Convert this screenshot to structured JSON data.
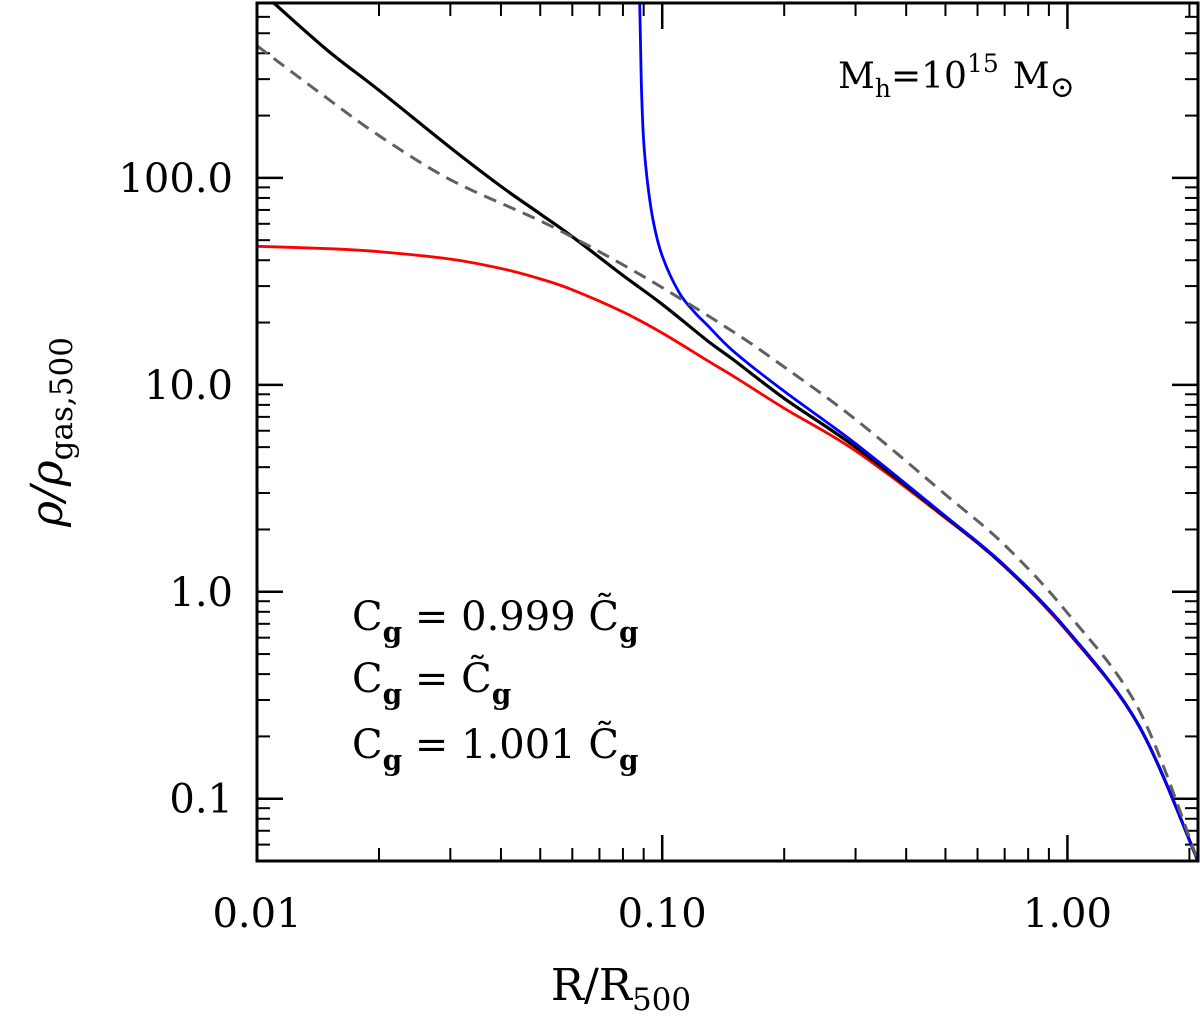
{
  "chart_data": {
    "type": "line",
    "xscale": "log",
    "yscale": "log",
    "xlim": [
      0.01,
      2.1
    ],
    "ylim": [
      0.05,
      700
    ],
    "xlabel_main": "R/R",
    "xlabel_sub": "500",
    "ylabel_main": "ρ/ρ",
    "ylabel_sub": "gas,500",
    "x_ticks": [
      {
        "value": 0.01,
        "label": "0.01"
      },
      {
        "value": 0.1,
        "label": "0.10"
      },
      {
        "value": 1.0,
        "label": "1.00"
      }
    ],
    "y_ticks": [
      {
        "value": 0.1,
        "label": "0.1"
      },
      {
        "value": 1.0,
        "label": "1.0"
      },
      {
        "value": 10.0,
        "label": "10.0"
      },
      {
        "value": 100.0,
        "label": "100.0"
      }
    ],
    "annotation": {
      "main": "M",
      "sub": "h",
      "mid": "=10",
      "sup": "15",
      "unit": "M",
      "sun_symbol": "⊙"
    },
    "series": [
      {
        "name": "Cg = 0.999 C̃g",
        "color": "#ff0000",
        "style": "solid",
        "x": [
          0.01,
          0.015,
          0.02,
          0.03,
          0.04,
          0.05,
          0.06,
          0.08,
          0.1,
          0.13,
          0.15,
          0.2,
          0.3,
          0.5,
          0.7,
          1.0,
          1.5,
          2.1
        ],
        "y": [
          46.7,
          45.5,
          44.0,
          40.5,
          36.5,
          32.5,
          28.8,
          22.5,
          17.8,
          13.0,
          11.0,
          7.7,
          4.8,
          2.27,
          1.32,
          0.64,
          0.225,
          0.05
        ]
      },
      {
        "name": "Cg = C̃g",
        "color": "#000000",
        "style": "solid",
        "x": [
          0.011,
          0.015,
          0.02,
          0.03,
          0.04,
          0.05,
          0.06,
          0.08,
          0.1,
          0.13,
          0.15,
          0.2,
          0.3,
          0.5,
          0.7,
          1.0,
          1.5,
          2.1
        ],
        "y": [
          700,
          410,
          265,
          140,
          91,
          67,
          52,
          33.8,
          24.5,
          16.2,
          13.2,
          8.6,
          5.0,
          2.3,
          1.33,
          0.65,
          0.226,
          0.05
        ]
      },
      {
        "name": "Cg = 1.001 C̃g",
        "color": "#0000ff",
        "style": "solid",
        "x": [
          0.088,
          0.0885,
          0.089,
          0.09,
          0.092,
          0.095,
          0.1,
          0.11,
          0.12,
          0.13,
          0.15,
          0.2,
          0.3,
          0.5,
          0.7,
          1.0,
          1.5,
          2.1
        ],
        "y": [
          700,
          400,
          250,
          150,
          95,
          62,
          42,
          28,
          22.5,
          19.2,
          14.5,
          9.3,
          5.2,
          2.32,
          1.34,
          0.65,
          0.226,
          0.05
        ]
      },
      {
        "name": "",
        "color": "#606060",
        "style": "dashed",
        "x": [
          0.01,
          0.015,
          0.02,
          0.03,
          0.05,
          0.07,
          0.1,
          0.15,
          0.2,
          0.3,
          0.5,
          0.7,
          1.0,
          1.5,
          2.1
        ],
        "y": [
          435,
          240,
          160,
          98,
          62,
          44,
          29.5,
          18.0,
          12.2,
          6.8,
          2.95,
          1.68,
          0.79,
          0.27,
          0.05
        ]
      }
    ],
    "legend": {
      "placement": "lower-left",
      "entries": [
        {
          "color": "#ff0000",
          "lhs": "C",
          "lhs_sub": "g",
          "eq": "=",
          "coef": "0.999",
          "rhs": "C̃",
          "rhs_sub": "g"
        },
        {
          "color": "#000000",
          "lhs": "C",
          "lhs_sub": "g",
          "eq": "=",
          "coef": "",
          "rhs": "C̃",
          "rhs_sub": "g"
        },
        {
          "color": "#0000ff",
          "lhs": "C",
          "lhs_sub": "g",
          "eq": "=",
          "coef": "1.001",
          "rhs": "C̃",
          "rhs_sub": "g"
        }
      ]
    }
  }
}
